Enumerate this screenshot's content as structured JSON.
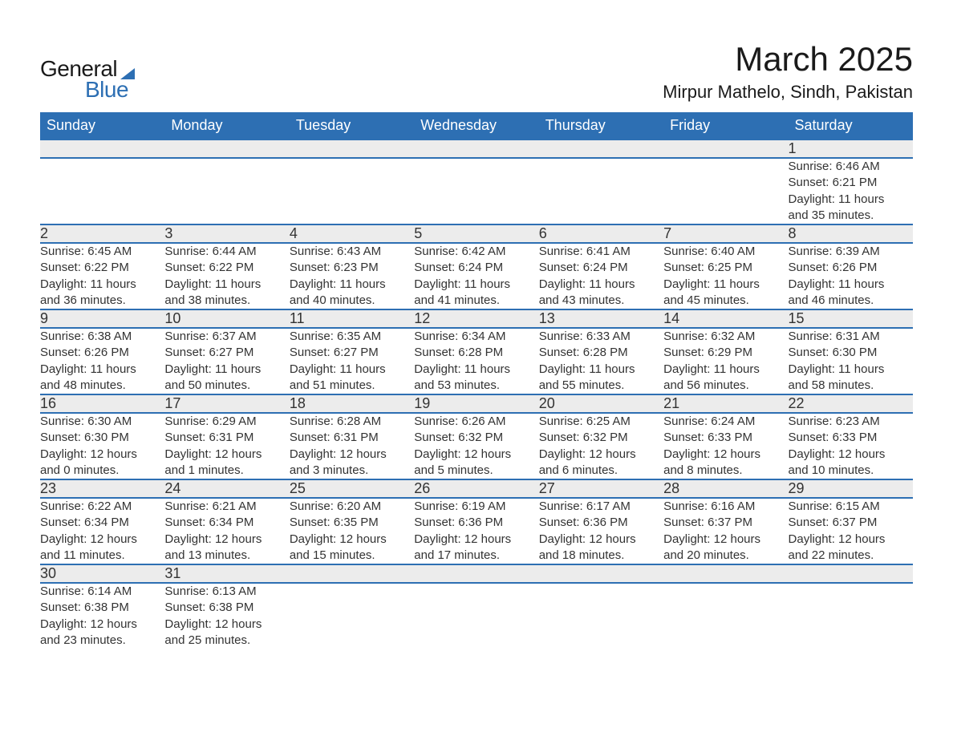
{
  "logo": {
    "word1": "General",
    "word2": "Blue",
    "accent_color": "#2d6fb3"
  },
  "title": "March 2025",
  "location": "Mirpur Mathelo, Sindh, Pakistan",
  "calendar": {
    "type": "table",
    "header_bg": "#2d6fb3",
    "header_fg": "#ffffff",
    "daynum_bg": "#ececec",
    "row_divider_color": "#2d6fb3",
    "text_color": "#333333",
    "background_color": "#ffffff",
    "header_fontsize": 18,
    "daynum_fontsize": 18,
    "info_fontsize": 15,
    "day_headers": [
      "Sunday",
      "Monday",
      "Tuesday",
      "Wednesday",
      "Thursday",
      "Friday",
      "Saturday"
    ],
    "weeks": [
      [
        null,
        null,
        null,
        null,
        null,
        null,
        {
          "n": "1",
          "sunrise": "6:46 AM",
          "sunset": "6:21 PM",
          "day_h": "11",
          "day_m": "35"
        }
      ],
      [
        {
          "n": "2",
          "sunrise": "6:45 AM",
          "sunset": "6:22 PM",
          "day_h": "11",
          "day_m": "36"
        },
        {
          "n": "3",
          "sunrise": "6:44 AM",
          "sunset": "6:22 PM",
          "day_h": "11",
          "day_m": "38"
        },
        {
          "n": "4",
          "sunrise": "6:43 AM",
          "sunset": "6:23 PM",
          "day_h": "11",
          "day_m": "40"
        },
        {
          "n": "5",
          "sunrise": "6:42 AM",
          "sunset": "6:24 PM",
          "day_h": "11",
          "day_m": "41"
        },
        {
          "n": "6",
          "sunrise": "6:41 AM",
          "sunset": "6:24 PM",
          "day_h": "11",
          "day_m": "43"
        },
        {
          "n": "7",
          "sunrise": "6:40 AM",
          "sunset": "6:25 PM",
          "day_h": "11",
          "day_m": "45"
        },
        {
          "n": "8",
          "sunrise": "6:39 AM",
          "sunset": "6:26 PM",
          "day_h": "11",
          "day_m": "46"
        }
      ],
      [
        {
          "n": "9",
          "sunrise": "6:38 AM",
          "sunset": "6:26 PM",
          "day_h": "11",
          "day_m": "48"
        },
        {
          "n": "10",
          "sunrise": "6:37 AM",
          "sunset": "6:27 PM",
          "day_h": "11",
          "day_m": "50"
        },
        {
          "n": "11",
          "sunrise": "6:35 AM",
          "sunset": "6:27 PM",
          "day_h": "11",
          "day_m": "51"
        },
        {
          "n": "12",
          "sunrise": "6:34 AM",
          "sunset": "6:28 PM",
          "day_h": "11",
          "day_m": "53"
        },
        {
          "n": "13",
          "sunrise": "6:33 AM",
          "sunset": "6:28 PM",
          "day_h": "11",
          "day_m": "55"
        },
        {
          "n": "14",
          "sunrise": "6:32 AM",
          "sunset": "6:29 PM",
          "day_h": "11",
          "day_m": "56"
        },
        {
          "n": "15",
          "sunrise": "6:31 AM",
          "sunset": "6:30 PM",
          "day_h": "11",
          "day_m": "58"
        }
      ],
      [
        {
          "n": "16",
          "sunrise": "6:30 AM",
          "sunset": "6:30 PM",
          "day_h": "12",
          "day_m": "0"
        },
        {
          "n": "17",
          "sunrise": "6:29 AM",
          "sunset": "6:31 PM",
          "day_h": "12",
          "day_m": "1"
        },
        {
          "n": "18",
          "sunrise": "6:28 AM",
          "sunset": "6:31 PM",
          "day_h": "12",
          "day_m": "3"
        },
        {
          "n": "19",
          "sunrise": "6:26 AM",
          "sunset": "6:32 PM",
          "day_h": "12",
          "day_m": "5"
        },
        {
          "n": "20",
          "sunrise": "6:25 AM",
          "sunset": "6:32 PM",
          "day_h": "12",
          "day_m": "6"
        },
        {
          "n": "21",
          "sunrise": "6:24 AM",
          "sunset": "6:33 PM",
          "day_h": "12",
          "day_m": "8"
        },
        {
          "n": "22",
          "sunrise": "6:23 AM",
          "sunset": "6:33 PM",
          "day_h": "12",
          "day_m": "10"
        }
      ],
      [
        {
          "n": "23",
          "sunrise": "6:22 AM",
          "sunset": "6:34 PM",
          "day_h": "12",
          "day_m": "11"
        },
        {
          "n": "24",
          "sunrise": "6:21 AM",
          "sunset": "6:34 PM",
          "day_h": "12",
          "day_m": "13"
        },
        {
          "n": "25",
          "sunrise": "6:20 AM",
          "sunset": "6:35 PM",
          "day_h": "12",
          "day_m": "15"
        },
        {
          "n": "26",
          "sunrise": "6:19 AM",
          "sunset": "6:36 PM",
          "day_h": "12",
          "day_m": "17"
        },
        {
          "n": "27",
          "sunrise": "6:17 AM",
          "sunset": "6:36 PM",
          "day_h": "12",
          "day_m": "18"
        },
        {
          "n": "28",
          "sunrise": "6:16 AM",
          "sunset": "6:37 PM",
          "day_h": "12",
          "day_m": "20"
        },
        {
          "n": "29",
          "sunrise": "6:15 AM",
          "sunset": "6:37 PM",
          "day_h": "12",
          "day_m": "22"
        }
      ],
      [
        {
          "n": "30",
          "sunrise": "6:14 AM",
          "sunset": "6:38 PM",
          "day_h": "12",
          "day_m": "23"
        },
        {
          "n": "31",
          "sunrise": "6:13 AM",
          "sunset": "6:38 PM",
          "day_h": "12",
          "day_m": "25"
        },
        null,
        null,
        null,
        null,
        null
      ]
    ],
    "labels": {
      "sunrise_prefix": "Sunrise: ",
      "sunset_prefix": "Sunset: ",
      "daylight_prefix": "Daylight: ",
      "hours_word": " hours",
      "and_word": "and ",
      "minutes_word": " minutes."
    }
  }
}
